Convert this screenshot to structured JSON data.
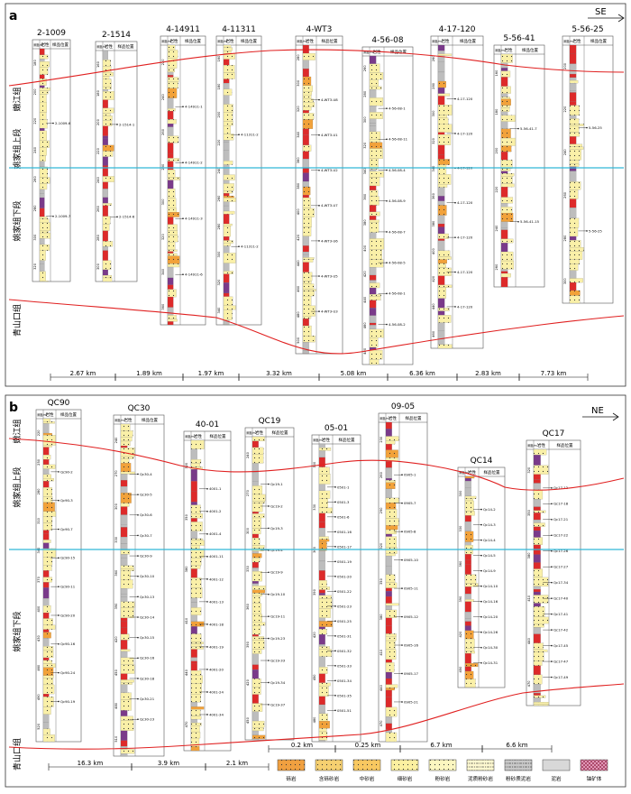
{
  "panel_a": {
    "label": "a",
    "direction": "SE",
    "formations": [
      "嫩江组",
      "姚家组上段",
      "姚家组下段",
      "青山口组"
    ],
    "header_labels": [
      "深度/m",
      "岩性",
      "样品位置"
    ],
    "distances": [
      "2.67 km",
      "1.89 km",
      "1.97 km",
      "3.32 km",
      "5.08 km",
      "6.36 km",
      "2.83 km",
      "7.73 km"
    ],
    "wells": [
      {
        "name": "2-1009",
        "depths": [
          "180",
          "200",
          "220",
          "240",
          "260",
          "280",
          "300",
          "320"
        ],
        "samples": [
          "2-1009-6",
          "2-1009-7"
        ]
      },
      {
        "name": "2-1514",
        "depths": [
          "160",
          "180",
          "200",
          "220",
          "240",
          "260",
          "280",
          "300"
        ],
        "samples": [
          "2-1514-1",
          "2-1514-6"
        ]
      },
      {
        "name": "4-14911",
        "depths": [
          "220",
          "240",
          "260",
          "280",
          "300",
          "320",
          "340",
          "360"
        ],
        "samples": [
          "4-14911-1",
          "4-14911-2",
          "4-14911-3",
          "4-14911-6"
        ]
      },
      {
        "name": "4-11311",
        "depths": [
          "160",
          "180",
          "200",
          "220",
          "240",
          "260",
          "280",
          "300",
          "320",
          "340"
        ],
        "samples": [
          "4-11311-2",
          "4-11311-2"
        ]
      },
      {
        "name": "4-WT3",
        "depths": [
          "280",
          "300",
          "320",
          "340",
          "360",
          "380",
          "400",
          "420",
          "440",
          "460",
          "480",
          "500"
        ],
        "samples": [
          "4-WT3-U8",
          "4-WT3-U1",
          "4-WT3-U2",
          "4-WT3-U7",
          "4-WT3-U6",
          "4-WT3-U5",
          "4-WT3-U3"
        ]
      },
      {
        "name": "4-56-08",
        "depths": [
          "260",
          "280",
          "300",
          "320",
          "340",
          "360",
          "380",
          "400",
          "420",
          "440",
          "460",
          "480"
        ],
        "samples": [
          "4-56-08-1",
          "4-56-08-11",
          "4-56-08-4",
          "4-56-08-9",
          "4-56-08-7",
          "4-56-08-5",
          "4-56-08-1",
          "4-56-08-2"
        ]
      },
      {
        "name": "4-17-120",
        "depths": [
          "260",
          "280",
          "300",
          "320",
          "340",
          "360",
          "380",
          "400",
          "420",
          "440",
          "460"
        ],
        "samples": [
          "4-17-120",
          "4-17-120",
          "4-17-120",
          "4-17-120",
          "4-17-120",
          "4-17-120",
          "4-17-120"
        ]
      },
      {
        "name": "5-56-41",
        "depths": [
          "160",
          "180",
          "200",
          "220",
          "240",
          "260"
        ],
        "samples": [
          "5-56-41-7",
          "5-56-41-15"
        ]
      },
      {
        "name": "5-56-25",
        "depths": [
          "200",
          "220",
          "240",
          "260",
          "280",
          "300"
        ],
        "samples": [
          "5-56-25",
          "5-56-25"
        ]
      }
    ]
  },
  "panel_b": {
    "label": "b",
    "direction": "NE",
    "formations": [
      "嫩江组",
      "姚家组上段",
      "姚家组下段",
      "青山口组"
    ],
    "header_labels": [
      "深度/m",
      "岩性",
      "样品位置"
    ],
    "distances": [
      "16.3 km",
      "3.9 km",
      "2.1 km",
      "0.2 km",
      "0.25 km",
      "6.7 km",
      "6.6 km"
    ],
    "wells": [
      {
        "name": "QC90",
        "depths": [
          "220",
          "250",
          "280",
          "310",
          "340",
          "370",
          "400",
          "430",
          "460",
          "490",
          "520"
        ],
        "samples": [
          "Qc90-2",
          "Qc90-3",
          "Qc90-7",
          "Qc90-15",
          "Qc90-11",
          "Qc90-20",
          "Qc90-16",
          "Qc90-24",
          "Qc90-19"
        ]
      },
      {
        "name": "QC30",
        "depths": [
          "240",
          "270",
          "300",
          "330",
          "360",
          "390",
          "420",
          "450",
          "480",
          "510"
        ],
        "samples": [
          "Qc30-4",
          "Qc30-5",
          "Qc30-6",
          "Qc30-7",
          "Qc30-9",
          "Qc30-10",
          "Qc30-13",
          "Qc30-14",
          "Qc30-15",
          "Qc30-16",
          "Qc30-18",
          "Qc30-21",
          "Qc30-23"
        ]
      },
      {
        "name": "40-01",
        "depths": [
          "320",
          "350",
          "380",
          "410",
          "440",
          "470"
        ],
        "samples": [
          "4001-1",
          "4001-2",
          "4001-4",
          "4001-11",
          "4001-12",
          "4001-13",
          "4001-18",
          "4001-19",
          "4001-20",
          "4001-24",
          "4001-34"
        ]
      },
      {
        "name": "QC19",
        "depths": [
          "240",
          "270",
          "300",
          "330",
          "360",
          "390",
          "420",
          "450"
        ],
        "samples": [
          "Qc19-1",
          "Qc19-2",
          "Qc19-3",
          "Qc19-4",
          "Qc19-9",
          "Qc19-10",
          "Qc19-11",
          "Qc19-23",
          "Qc19-33",
          "Qc19-34",
          "Qc19-37"
        ]
      },
      {
        "name": "05-01",
        "depths": [
          "300",
          "330",
          "360",
          "390",
          "420",
          "450",
          "480"
        ],
        "samples": [
          "0501-1",
          "0501-3",
          "0501-6",
          "0501-16",
          "0501-17",
          "0501-19",
          "0501-20",
          "0501-22",
          "0501-23",
          "0501-25",
          "0501-31",
          "0501-32",
          "0501-33",
          "0501-34",
          "0501-35",
          "0501-51"
        ]
      },
      {
        "name": "09-05",
        "depths": [
          "230",
          "260",
          "290",
          "320",
          "350",
          "380",
          "410",
          "440",
          "470"
        ],
        "samples": [
          "0905-1",
          "0905-7",
          "0905-8",
          "0905-10",
          "0905-11",
          "0905-12",
          "0905-16",
          "0905-17",
          "0905-21"
        ]
      },
      {
        "name": "QC14",
        "depths": [
          "300",
          "330",
          "360",
          "390",
          "420",
          "450"
        ],
        "samples": [
          "Qc14-2",
          "Qc14-3",
          "Qc14-4",
          "Qc14-5",
          "Qc14-9",
          "Qc14-10",
          "Qc14-16",
          "Qc14-20",
          "Qc14-26",
          "Qc14-30",
          "Qc14-31"
        ]
      },
      {
        "name": "QC17",
        "depths": [
          "320",
          "350",
          "380",
          "410",
          "440",
          "470"
        ],
        "samples": [
          "Qc17-12",
          "Qc17-18",
          "Qc17-21",
          "Qc17-22",
          "Qc17-26",
          "Qc17-27",
          "Qc17-34",
          "Qc17-40",
          "Qc17-41",
          "Qc17-42",
          "Qc17-45",
          "Qc17-47",
          "Qc17-49"
        ]
      }
    ]
  },
  "legend": [
    {
      "label": "砾岩",
      "color": "#f0a040",
      "pattern": "dots"
    },
    {
      "label": "含砾砂岩",
      "color": "#f6d070",
      "pattern": "dots"
    },
    {
      "label": "中砂岩",
      "color": "#f8c860",
      "pattern": "dots"
    },
    {
      "label": "细砂岩",
      "color": "#fbf0a0",
      "pattern": "dots"
    },
    {
      "label": "粉砂岩",
      "color": "#fbf6c0",
      "pattern": "dots"
    },
    {
      "label": "泥质粉砂岩",
      "color": "#fdf8d0",
      "pattern": "dash-dot"
    },
    {
      "label": "粉砂质泥岩",
      "color": "#c8c8c8",
      "pattern": "dash-dot"
    },
    {
      "label": "泥岩",
      "color": "#d8d8d8",
      "pattern": "none"
    },
    {
      "label": "铀矿体",
      "color": "#e8a0c0",
      "pattern": "cross"
    }
  ],
  "colors": {
    "boundary_line": "#e02020",
    "mid_line": "#30b8d8",
    "red_mudstone": "#dd2a2a",
    "sand": "#faf0a8",
    "grey": "#bdbdbd",
    "purple": "#7a3a8a",
    "magenta": "#d02080"
  }
}
